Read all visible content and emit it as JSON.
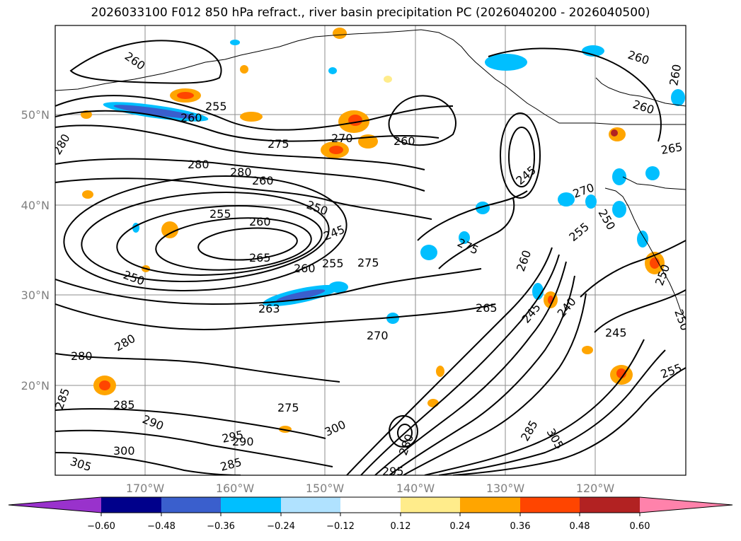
{
  "title": "2026033100 F012 850 hPa refract., river basin precipitation PC (2026040200 - 2026040500)",
  "map": {
    "lat_labels": [
      "50°N",
      "40°N",
      "30°N",
      "20°N"
    ],
    "lon_labels": [
      "170°W",
      "160°W",
      "150°W",
      "140°W",
      "130°W",
      "120°W"
    ],
    "contour_labels": [
      "260",
      "255",
      "260",
      "275",
      "270",
      "260",
      "280",
      "280",
      "260",
      "250",
      "255",
      "260",
      "245",
      "265",
      "250",
      "260",
      "255",
      "275",
      "275",
      "263",
      "270",
      "280",
      "280",
      "285",
      "285",
      "290",
      "300",
      "295",
      "290",
      "285",
      "275",
      "300",
      "305",
      "265",
      "245",
      "240",
      "245",
      "260",
      "270",
      "250",
      "255",
      "250",
      "255",
      "250",
      "260",
      "265",
      "260",
      "260",
      "245",
      "280",
      "295",
      "305",
      "280",
      "285"
    ]
  },
  "colorbar": {
    "ticks": [
      "−0.60",
      "−0.48",
      "−0.36",
      "−0.24",
      "−0.12",
      "0.12",
      "0.24",
      "0.36",
      "0.48",
      "0.60"
    ],
    "colors": [
      "#9932CC",
      "#00008B",
      "#3A5FCD",
      "#00BFFF",
      "#B0E2FF",
      "#FFFFFF",
      "#FFEC8B",
      "#FFA500",
      "#FF4500",
      "#B22222",
      "#FF82AB"
    ]
  }
}
